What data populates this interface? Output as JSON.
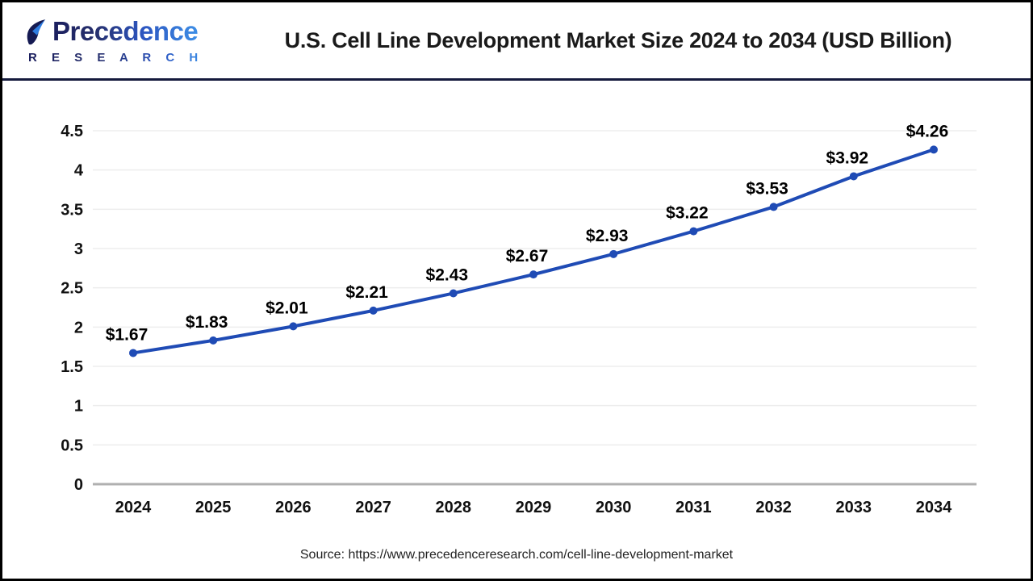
{
  "header": {
    "logo": {
      "name": "Precedence Research",
      "line1": "Precedence",
      "line2": "R E S E A R C H"
    },
    "title": "U.S. Cell Line Development Market Size 2024 to 2034 (USD Billion)"
  },
  "chart_data": {
    "type": "line",
    "title": "U.S. Cell Line Development Market Size 2024 to 2034 (USD Billion)",
    "categories": [
      "2024",
      "2025",
      "2026",
      "2027",
      "2028",
      "2029",
      "2030",
      "2031",
      "2032",
      "2033",
      "2034"
    ],
    "values": [
      1.67,
      1.83,
      2.01,
      2.21,
      2.43,
      2.67,
      2.93,
      3.22,
      3.53,
      3.92,
      4.26
    ],
    "point_labels": [
      "$1.67",
      "$1.83",
      "$2.01",
      "$2.21",
      "$2.43",
      "$2.67",
      "$2.93",
      "$3.22",
      "$3.53",
      "$3.92",
      "$4.26"
    ],
    "y_ticks": [
      "0",
      "0.5",
      "1",
      "1.5",
      "2",
      "2.5",
      "3",
      "3.5",
      "4",
      "4.5"
    ],
    "ylim": [
      0,
      4.5
    ],
    "xlabel": "",
    "ylabel": "",
    "grid": true,
    "legend": "none",
    "marker": "circle"
  },
  "colors": {
    "line": "#1F4BB5",
    "grid": "#ededed",
    "zero_axis": "#b0b0b0",
    "label_text": "#111111",
    "divider": "#141a3c",
    "logo_dark": "#1b1f5e",
    "logo_light": "#3d8ee6"
  },
  "footer": {
    "source": "Source: https://www.precedenceresearch.com/cell-line-development-market"
  }
}
